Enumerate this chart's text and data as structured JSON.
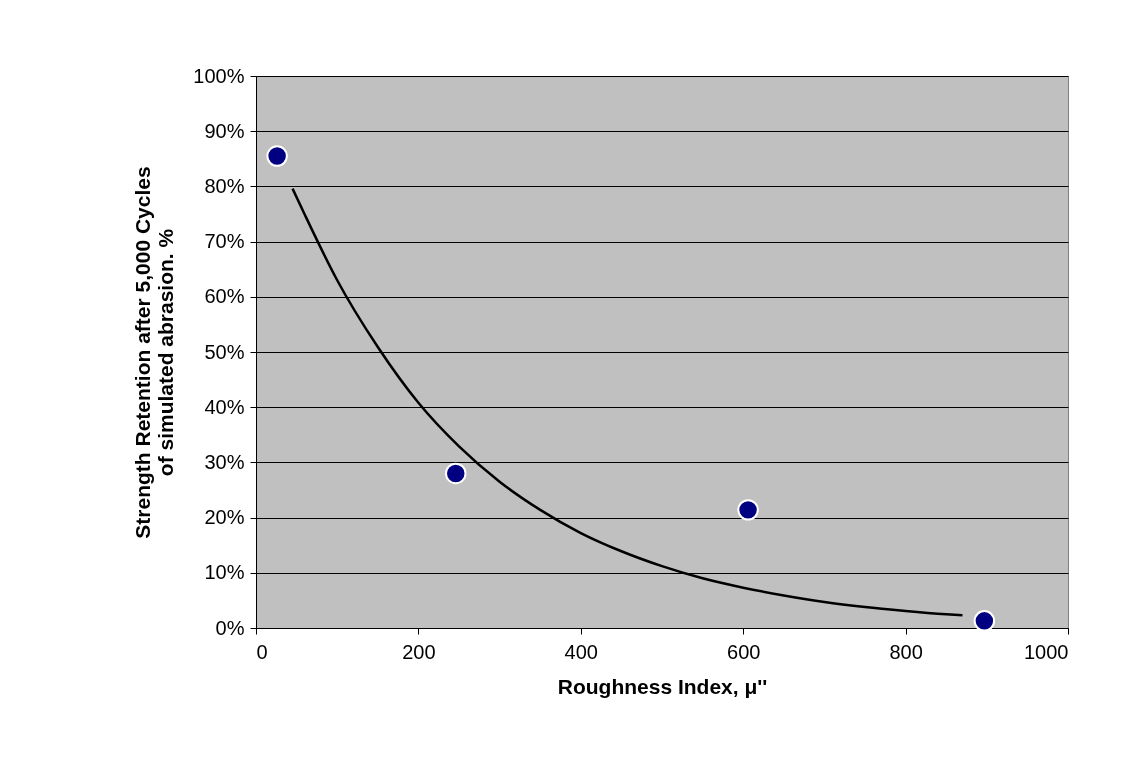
{
  "chart_data": {
    "type": "scatter",
    "xlabel": "Roughness Index, μ''",
    "ylabel": "Strength Retention after 5,000 Cycles\nof simulated abrasion. %",
    "xlim": [
      0,
      1000
    ],
    "xticks": [
      0,
      200,
      400,
      600,
      800,
      1000
    ],
    "ylim": [
      0,
      100
    ],
    "yticks": [
      {
        "value": 0,
        "label": "0%"
      },
      {
        "value": 10,
        "label": "10%"
      },
      {
        "value": 20,
        "label": "20%"
      },
      {
        "value": 30,
        "label": "30%"
      },
      {
        "value": 40,
        "label": "40%"
      },
      {
        "value": 50,
        "label": "50%"
      },
      {
        "value": 60,
        "label": "60%"
      },
      {
        "value": 70,
        "label": "70%"
      },
      {
        "value": 80,
        "label": "80%"
      },
      {
        "value": 90,
        "label": "90%"
      },
      {
        "value": 100,
        "label": "100%"
      }
    ],
    "grid": "y",
    "series": [
      {
        "color": "#000080",
        "marker": "circle",
        "x": [
          26,
          246,
          606,
          897
        ],
        "values": [
          85.5,
          28,
          21.4,
          1.3
        ]
      },
      {
        "type": "line",
        "color": "#000000",
        "marker": "none",
        "line_style": "solid",
        "x": [
          45,
          60,
          100,
          150,
          200,
          250,
          300,
          350,
          400,
          450,
          500,
          550,
          600,
          650,
          700,
          750,
          800,
          850,
          870
        ],
        "values": [
          79.6,
          74.9,
          63,
          50.9,
          40.8,
          32.9,
          26.5,
          21.4,
          17.2,
          13.9,
          11.2,
          9,
          7.3,
          5.9,
          4.7,
          3.8,
          3.1,
          2.5,
          2.3
        ]
      }
    ]
  }
}
